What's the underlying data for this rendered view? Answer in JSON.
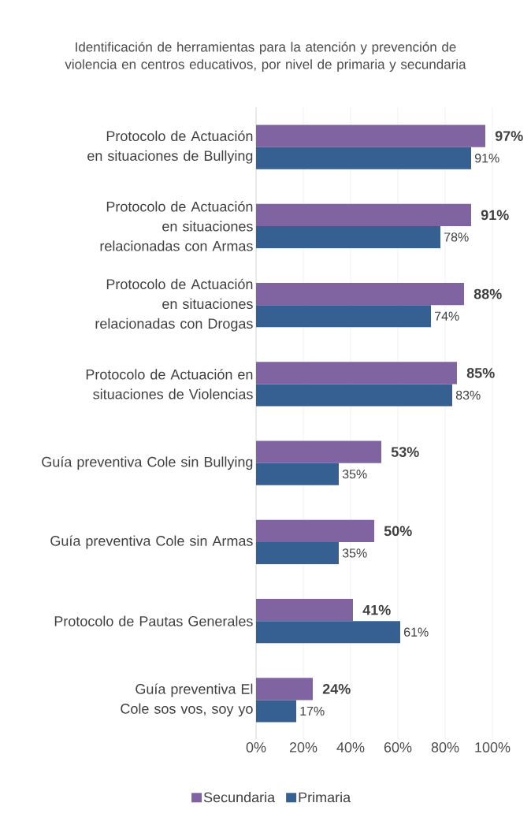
{
  "chart_data": {
    "type": "bar",
    "orientation": "horizontal",
    "title": "Identificación de herramientas para la atención y prevención de violencia en centros educativos, por nivel de primaria y secundaria",
    "categories": [
      "Protocolo de Actuación en situaciones de Bullying",
      "Protocolo de Actuación en situaciones relacionadas con Armas",
      "Protocolo de Actuación en situaciones relacionadas con Drogas",
      "Protocolo de Actuación en situaciones de Violencias",
      "Guía preventiva Cole sin Bullying",
      "Guía preventiva Cole sin Armas",
      "Protocolo de Pautas Generales",
      "Guía preventiva El Cole sos vos, soy yo"
    ],
    "series": [
      {
        "name": "Secundaria",
        "color": "#8064a2",
        "values": [
          97,
          91,
          88,
          85,
          53,
          50,
          41,
          24
        ],
        "value_labels": [
          "97%",
          "91%",
          "88%",
          "85%",
          "53%",
          "50%",
          "41%",
          "24%"
        ]
      },
      {
        "name": "Primaria",
        "color": "#376092",
        "values": [
          91,
          78,
          74,
          83,
          35,
          35,
          61,
          17
        ],
        "value_labels": [
          "91%",
          "78%",
          "74%",
          "83%",
          "35%",
          "35%",
          "61%",
          "17%"
        ]
      }
    ],
    "xlim": [
      0,
      100
    ],
    "xticks": [
      {
        "value": 0,
        "label": "0%"
      },
      {
        "value": 20,
        "label": "20%"
      },
      {
        "value": 40,
        "label": "40%"
      },
      {
        "value": 60,
        "label": "60%"
      },
      {
        "value": 80,
        "label": "80%"
      },
      {
        "value": 100,
        "label": "100%"
      }
    ],
    "grid": "x",
    "legend": "bottom"
  }
}
